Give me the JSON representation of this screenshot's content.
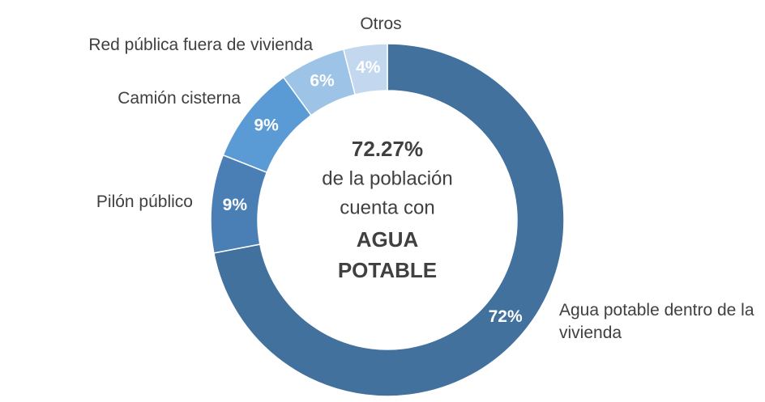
{
  "chart_data": {
    "type": "donut",
    "categories": [
      "Agua potable dentro de la vivienda",
      "Pilón público",
      "Camión cisterna",
      "Red pública fuera de vivienda",
      "Otros"
    ],
    "values": [
      72,
      9,
      9,
      6,
      4
    ],
    "value_labels": [
      "72%",
      "9%",
      "9%",
      "6%",
      "4%"
    ],
    "colors": [
      "#41719c",
      "#4a7fb5",
      "#5b9bd5",
      "#9dc3e6",
      "#c3d8ef"
    ],
    "annotations": [
      {
        "text": "72.27%",
        "bold": true
      },
      {
        "text": "de la población",
        "bold": false
      },
      {
        "text": "cuenta con",
        "bold": false
      },
      {
        "text": "AGUA",
        "bold": true
      },
      {
        "text": "POTABLE",
        "bold": true
      }
    ]
  }
}
